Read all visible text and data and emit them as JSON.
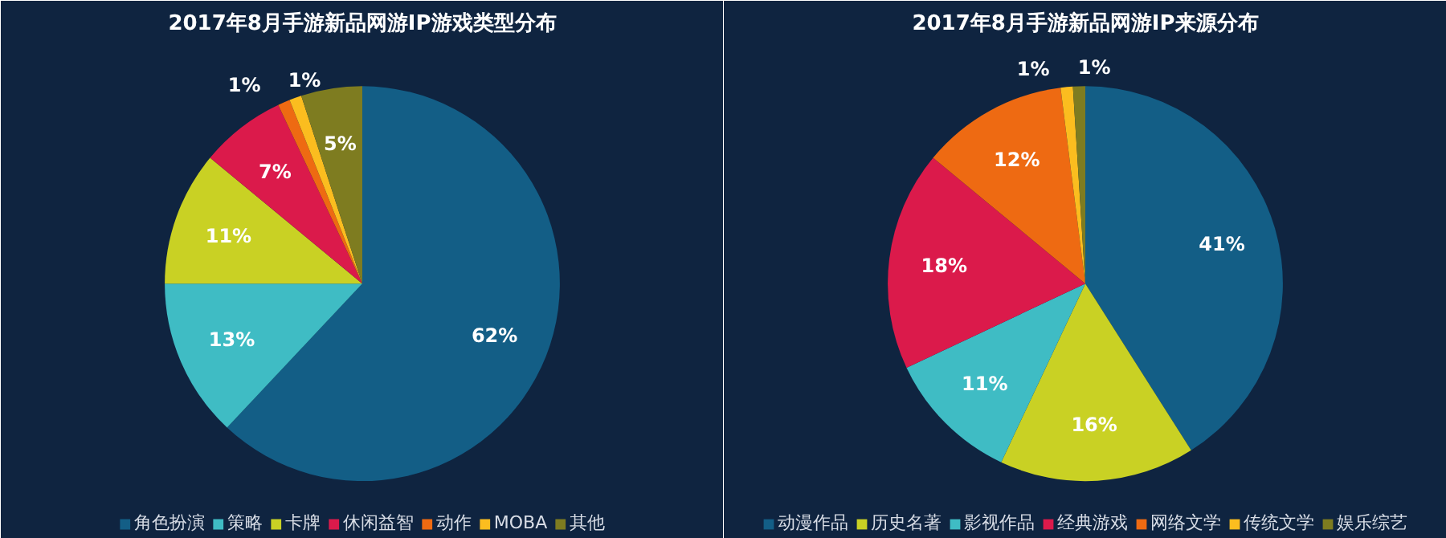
{
  "chart_data": [
    {
      "type": "pie",
      "title": "2017年8月手游新品网游IP游戏类型分布",
      "categories": [
        "角色扮演",
        "策略",
        "卡牌",
        "休闲益智",
        "动作",
        "MOBA",
        "其他"
      ],
      "values": [
        62,
        13,
        11,
        7,
        1,
        1,
        5
      ],
      "colors": [
        "#135e86",
        "#3fbcc4",
        "#c9d124",
        "#db1a4b",
        "#ee6a12",
        "#fbbd1f",
        "#7e7c20"
      ],
      "value_labels": [
        "62%",
        "13%",
        "11%",
        "7%",
        "1%",
        "1%",
        "5%"
      ],
      "legend": "bottom"
    },
    {
      "type": "pie",
      "title": "2017年8月手游新品网游IP来源分布",
      "categories": [
        "动漫作品",
        "历史名著",
        "影视作品",
        "经典游戏",
        "网络文学",
        "传统文学",
        "娱乐综艺"
      ],
      "values": [
        41,
        16,
        11,
        18,
        12,
        1,
        1
      ],
      "colors": [
        "#135e86",
        "#c9d124",
        "#3fbcc4",
        "#db1a4b",
        "#ee6a12",
        "#fbbd1f",
        "#7e7c20"
      ],
      "value_labels": [
        "41%",
        "16%",
        "11%",
        "18%",
        "12%",
        "1%",
        "1%"
      ],
      "legend": "bottom"
    }
  ]
}
